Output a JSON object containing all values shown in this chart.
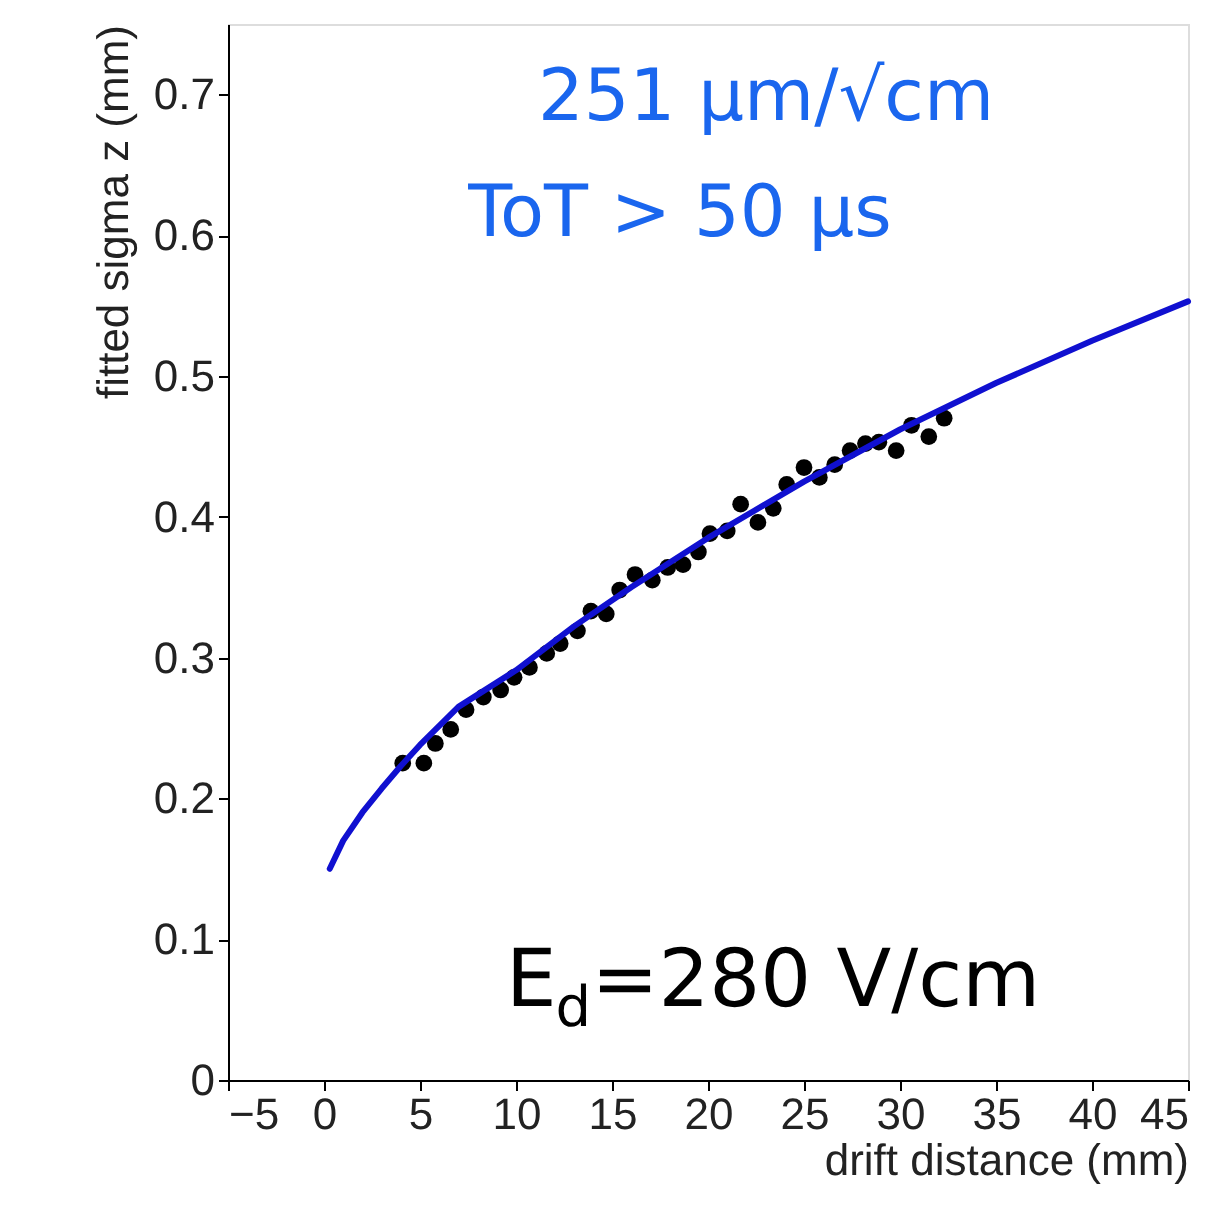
{
  "chart_data": {
    "type": "scatter",
    "xlabel": "drift distance (mm)",
    "ylabel": "fitted sigma z (mm)",
    "annotations": [
      "251 μm/√cm",
      "ToT > 50 μs",
      "E$_{d}$=280 V/cm"
    ],
    "xlim": [
      -5,
      45
    ],
    "xticks": [
      -5,
      0,
      5,
      10,
      15,
      20,
      25,
      30,
      35,
      40,
      45
    ],
    "ylim": [
      0,
      0.75
    ],
    "yticks": [
      0,
      0.1,
      0.2,
      0.3,
      0.4,
      0.5,
      0.6,
      0.7
    ],
    "grid": false,
    "series": [
      {
        "color": "#000000",
        "marker": "circle",
        "x": [
          4.1,
          5.2,
          5.8,
          6.6,
          7.4,
          8.3,
          9.2,
          9.9,
          10.7,
          11.6,
          12.3,
          13.2,
          13.9,
          14.7,
          15.4,
          16.2,
          17.1,
          17.9,
          18.7,
          19.5,
          20.1,
          21.0,
          21.7,
          22.6,
          23.4,
          24.1,
          25.0,
          25.8,
          26.6,
          27.4,
          28.2,
          28.9,
          29.8,
          30.6,
          31.5,
          32.3
        ],
        "values": [
          0.225,
          0.225,
          0.239,
          0.249,
          0.263,
          0.272,
          0.277,
          0.286,
          0.293,
          0.303,
          0.31,
          0.319,
          0.333,
          0.331,
          0.348,
          0.359,
          0.355,
          0.364,
          0.366,
          0.375,
          0.388,
          0.39,
          0.409,
          0.396,
          0.406,
          0.423,
          0.435,
          0.428,
          0.437,
          0.447,
          0.452,
          0.453,
          0.447,
          0.465,
          0.457,
          0.47
        ]
      },
      {
        "type": "line",
        "color": "#1010d0",
        "line_style": "solid",
        "x": [
          0.3,
          1,
          2,
          3,
          4,
          5,
          7,
          10,
          13,
          16,
          20,
          25,
          30,
          35,
          40,
          45
        ],
        "values": [
          0.15,
          0.17,
          0.19,
          0.207,
          0.223,
          0.238,
          0.265,
          0.291,
          0.322,
          0.35,
          0.385,
          0.425,
          0.462,
          0.495,
          0.525,
          0.553
        ]
      }
    ]
  }
}
